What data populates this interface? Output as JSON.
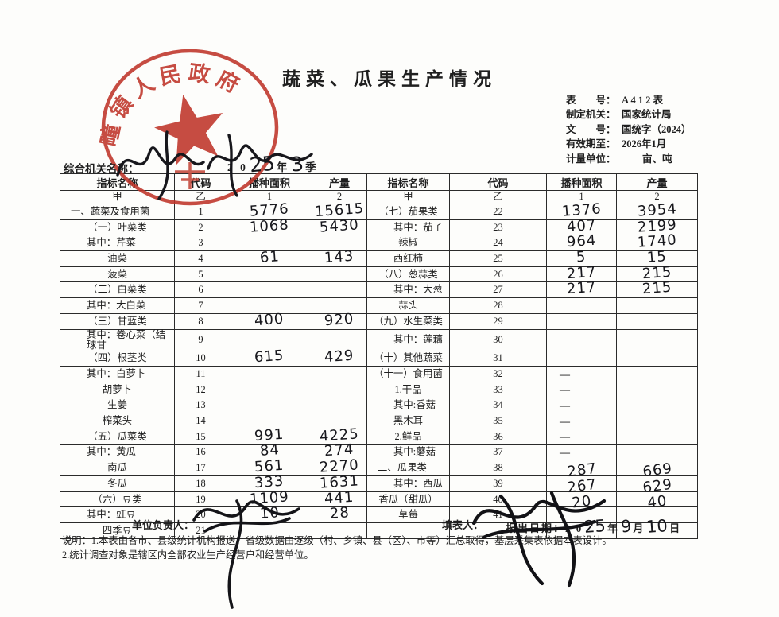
{
  "title": "蔬菜、瓜果生产情况",
  "info": [
    {
      "label": "表　　号：",
      "value": "A 4 1 2 表"
    },
    {
      "label": "制定机关：",
      "value": "国家统计局"
    },
    {
      "label": "文　　号：",
      "value": "国统字（2024）"
    },
    {
      "label": "有效期至：",
      "value": "2026年1月"
    },
    {
      "label": "计量单位：",
      "value": "亩、吨"
    }
  ],
  "org_line": {
    "label": "综合机关名称：",
    "year_printed": "2 0",
    "year_handwritten": "25",
    "year_unit": "年",
    "quarter_handwritten": "3",
    "quarter_unit": "季"
  },
  "stamp": {
    "arc_text": "疃镇人民政府",
    "color": "#bf3429",
    "star_icon": "red-star"
  },
  "table": {
    "header": [
      "指标名称",
      "代码",
      "播种面积",
      "产量"
    ],
    "subheader": [
      "甲",
      "乙",
      "1",
      "2"
    ],
    "left_rows": [
      {
        "name": "一、蔬菜及食用菌",
        "code": "1",
        "area": "5776",
        "prod": "15615"
      },
      {
        "name": "（一）叶菜类",
        "code": "2",
        "area": "1068",
        "prod": "5430"
      },
      {
        "name": "其中：芹菜",
        "code": "3",
        "area": "",
        "prod": ""
      },
      {
        "name": "油菜",
        "code": "4",
        "area": "61",
        "prod": "143"
      },
      {
        "name": "菠菜",
        "code": "5",
        "area": "",
        "prod": ""
      },
      {
        "name": "（二）白菜类",
        "code": "6",
        "area": "",
        "prod": ""
      },
      {
        "name": "其中：大白菜",
        "code": "7",
        "area": "",
        "prod": ""
      },
      {
        "name": "（三）甘蓝类",
        "code": "8",
        "area": "400",
        "prod": "920"
      },
      {
        "name": "其中：卷心菜（结球甘",
        "code": "9",
        "area": "",
        "prod": ""
      },
      {
        "name": "（四）根茎类",
        "code": "10",
        "area": "615",
        "prod": "429"
      },
      {
        "name": "其中：白萝卜",
        "code": "11",
        "area": "",
        "prod": ""
      },
      {
        "name": "胡萝卜",
        "code": "12",
        "area": "",
        "prod": ""
      },
      {
        "name": "生姜",
        "code": "13",
        "area": "",
        "prod": ""
      },
      {
        "name": "榨菜头",
        "code": "14",
        "area": "",
        "prod": ""
      },
      {
        "name": "（五）瓜菜类",
        "code": "15",
        "area": "991",
        "prod": "4225"
      },
      {
        "name": "其中：黄瓜",
        "code": "16",
        "area": "84",
        "prod": "274"
      },
      {
        "name": "南瓜",
        "code": "17",
        "area": "561",
        "prod": "2270"
      },
      {
        "name": "冬瓜",
        "code": "18",
        "area": "333",
        "prod": "1631"
      },
      {
        "name": "（六）豆类",
        "code": "19",
        "area": "1109",
        "prod": "441"
      },
      {
        "name": "其中：豇豆",
        "code": "20",
        "area": "10",
        "prod": "28"
      },
      {
        "name": "四季豆",
        "code": "21",
        "area": "",
        "prod": ""
      }
    ],
    "right_rows": [
      {
        "name": "（七）茄果类",
        "code": "22",
        "area": "1376",
        "prod": "3954"
      },
      {
        "name": "其中：茄子",
        "code": "23",
        "area": "407",
        "prod": "2199"
      },
      {
        "name": "辣椒",
        "code": "24",
        "area": "964",
        "prod": "1740"
      },
      {
        "name": "西红柿",
        "code": "25",
        "area": "5",
        "prod": "15"
      },
      {
        "name": "（八）葱蒜类",
        "code": "26",
        "area": "217",
        "prod": "215"
      },
      {
        "name": "其中：大葱",
        "code": "27",
        "area": "217",
        "prod": "215"
      },
      {
        "name": "蒜头",
        "code": "28",
        "area": "",
        "prod": ""
      },
      {
        "name": "（九）水生菜类",
        "code": "29",
        "area": "",
        "prod": ""
      },
      {
        "name": "其中：莲藕",
        "code": "30",
        "area": "",
        "prod": ""
      },
      {
        "name": "（十）其他蔬菜",
        "code": "31",
        "area": "",
        "prod": ""
      },
      {
        "name": "（十一）食用菌",
        "code": "32",
        "area": "—",
        "prod": ""
      },
      {
        "name": "1.干品",
        "code": "33",
        "area": "—",
        "prod": ""
      },
      {
        "name": "其中:香菇",
        "code": "34",
        "area": "—",
        "prod": ""
      },
      {
        "name": "黑木耳",
        "code": "35",
        "area": "—",
        "prod": ""
      },
      {
        "name": "2.鲜品",
        "code": "36",
        "area": "—",
        "prod": ""
      },
      {
        "name": "其中:蘑菇",
        "code": "37",
        "area": "—",
        "prod": ""
      },
      {
        "name": "二、瓜果类",
        "code": "38",
        "area": "287",
        "prod": "669"
      },
      {
        "name": "其中：西瓜",
        "code": "39",
        "area": "267",
        "prod": "629"
      },
      {
        "name": "香瓜（甜瓜）",
        "code": "40",
        "area": "20",
        "prod": "40"
      },
      {
        "name": "草莓",
        "code": "41",
        "area": "",
        "prod": ""
      },
      {
        "name": "",
        "code": "",
        "area": "",
        "prod": ""
      }
    ]
  },
  "footer": {
    "responsible_label": "单位负责人：",
    "filler_label": "填表人：",
    "date_label": "报出日期：",
    "date_printed": "2 0",
    "date_year_hw": "25",
    "date_year_unit": "年",
    "date_month_hw": "9",
    "date_month_unit": "月",
    "date_day_hw": "10",
    "date_day_unit": "日"
  },
  "notes": [
    "说明：1.本表由各市、县级统计机构报送；省级数据由逐级（村、乡镇、县（区）、市等）汇总取得，基层采集表依据本表设计。",
    "2.统计调查对象是辖区内全部农业生产经营户和经营单位。"
  ]
}
